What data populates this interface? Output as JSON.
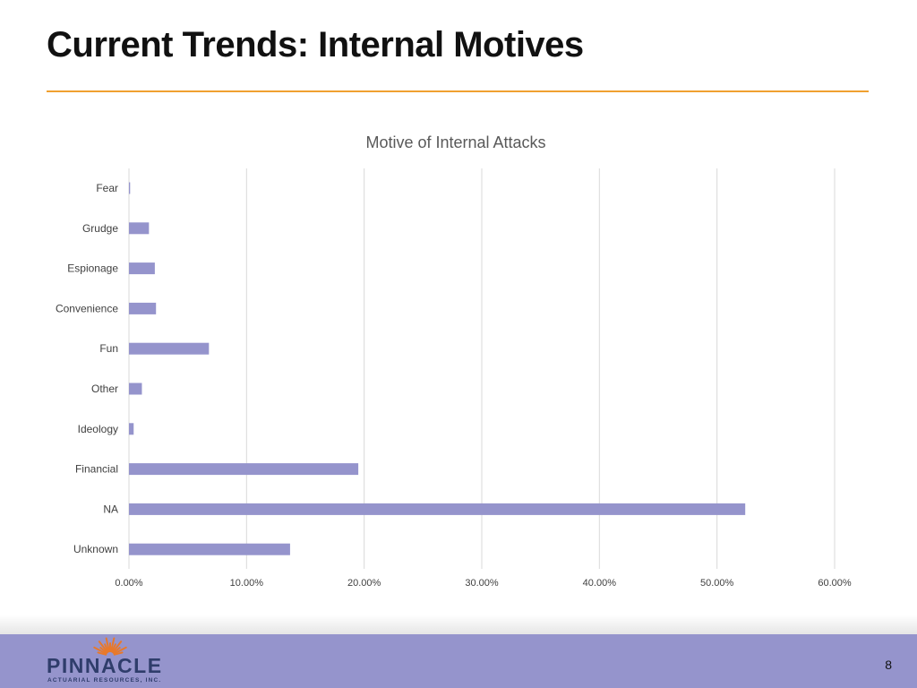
{
  "slide": {
    "title": "Current Trends: Internal Motives",
    "page_number": "8"
  },
  "logo": {
    "name": "PINNACLE",
    "tagline": "ACTUARIAL RESOURCES, INC."
  },
  "colors": {
    "accent_rule": "#f0a030",
    "bar": "#9594cc",
    "footer": "#9594cc",
    "logo_text": "#2f3d6b",
    "logo_sun": "#e8792b"
  },
  "chart_data": {
    "type": "bar",
    "orientation": "horizontal",
    "title": "Motive of Internal Attacks",
    "categories": [
      "Fear",
      "Grudge",
      "Espionage",
      "Convenience",
      "Fun",
      "Other",
      "Ideology",
      "Financial",
      "NA",
      "Unknown"
    ],
    "values": [
      0.1,
      1.7,
      2.2,
      2.3,
      6.8,
      1.1,
      0.4,
      19.5,
      52.4,
      13.7
    ],
    "xlim": [
      0,
      60
    ],
    "xticks": [
      "0.00%",
      "10.00%",
      "20.00%",
      "30.00%",
      "40.00%",
      "50.00%",
      "60.00%"
    ],
    "grid": true,
    "legend": "none"
  }
}
